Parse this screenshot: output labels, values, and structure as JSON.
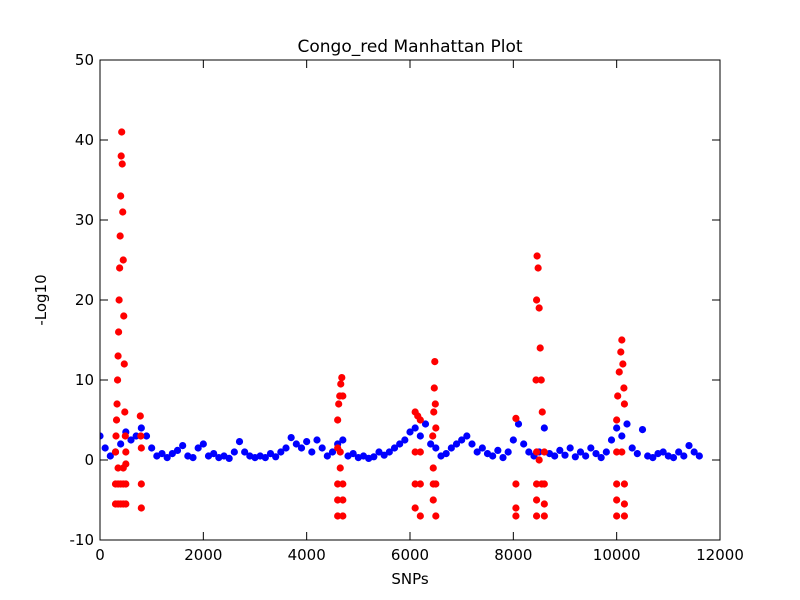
{
  "chart_data": {
    "type": "scatter",
    "title": "Congo_red Manhattan Plot",
    "x_label": "SNPs",
    "y_label": "-Log10",
    "xlim": [
      0,
      12000
    ],
    "ylim": [
      -10,
      50
    ],
    "xticks": [
      0,
      2000,
      4000,
      6000,
      8000,
      10000,
      12000
    ],
    "yticks": [
      -10,
      0,
      10,
      20,
      30,
      40,
      50
    ],
    "grid": false,
    "series": [
      {
        "color": "#0000ff",
        "x": [
          0,
          100,
          200,
          300,
          400,
          500,
          600,
          700,
          800,
          900,
          1000,
          1100,
          1200,
          1300,
          1400,
          1500,
          1600,
          1700,
          1800,
          1900,
          2000,
          2100,
          2200,
          2300,
          2400,
          2500,
          2600,
          2700,
          2800,
          2900,
          3000,
          3100,
          3200,
          3300,
          3400,
          3500,
          3600,
          3700,
          3800,
          3900,
          4000,
          4100,
          4200,
          4300,
          4400,
          4500,
          4600,
          4700,
          4800,
          4900,
          5000,
          5100,
          5200,
          5300,
          5400,
          5500,
          5600,
          5700,
          5800,
          5900,
          6000,
          6100,
          6200,
          6300,
          6400,
          6500,
          6600,
          6700,
          6800,
          6900,
          7000,
          7100,
          7200,
          7300,
          7400,
          7500,
          7600,
          7700,
          7800,
          7900,
          8000,
          8100,
          8200,
          8300,
          8400,
          8500,
          8600,
          8700,
          8800,
          8900,
          9000,
          9100,
          9200,
          9300,
          9400,
          9500,
          9600,
          9700,
          9800,
          9900,
          10000,
          10100,
          10200,
          10300,
          10400,
          10500,
          10600,
          10700,
          10800,
          10900,
          11000,
          11100,
          11200,
          11300,
          11400,
          11500,
          11600
        ],
        "values": [
          3,
          1.5,
          0.5,
          1,
          2,
          3.5,
          2.5,
          3,
          4,
          3,
          1.5,
          0.5,
          0.8,
          0.3,
          0.8,
          1.2,
          1.8,
          0.5,
          0.3,
          1.5,
          2,
          0.5,
          0.8,
          0.3,
          0.5,
          0.2,
          1,
          2.3,
          1,
          0.5,
          0.3,
          0.5,
          0.3,
          0.8,
          0.4,
          1,
          1.5,
          2.8,
          2,
          1.5,
          2.3,
          1,
          2.5,
          1.5,
          0.5,
          1,
          2,
          2.5,
          0.5,
          0.8,
          0.3,
          0.5,
          0.2,
          0.4,
          1,
          0.6,
          1,
          1.5,
          2,
          2.5,
          3.5,
          4,
          3,
          4.5,
          2,
          1.5,
          0.5,
          0.8,
          1.5,
          2,
          2.5,
          3,
          2,
          1,
          1.5,
          0.8,
          0.5,
          1.2,
          0.3,
          1,
          2.5,
          4.5,
          2,
          1,
          0.5,
          1,
          4,
          0.8,
          0.5,
          1.2,
          0.6,
          1.5,
          0.4,
          1,
          0.5,
          1.5,
          0.8,
          0.3,
          1,
          2.5,
          4,
          3,
          4.5,
          1.5,
          0.8,
          3.8,
          0.5,
          0.3,
          0.8,
          1,
          0.5,
          0.3,
          1,
          0.5,
          1.8,
          1,
          0.5
        ]
      },
      {
        "color": "#ff0000",
        "x": [
          300,
          310,
          320,
          330,
          340,
          350,
          360,
          370,
          380,
          390,
          400,
          410,
          420,
          430,
          440,
          450,
          460,
          470,
          480,
          490,
          500,
          300,
          350,
          400,
          450,
          500,
          300,
          350,
          400,
          450,
          500,
          350,
          450,
          500,
          780,
          790,
          800,
          800,
          800,
          4600,
          4620,
          4640,
          4660,
          4680,
          4700,
          4600,
          4650,
          4600,
          4700,
          4600,
          4700,
          4600,
          4700,
          4650,
          6100,
          6150,
          6200,
          6100,
          6200,
          6100,
          6200,
          6100,
          6200,
          6440,
          6460,
          6470,
          6480,
          6490,
          6500,
          6450,
          6450,
          6500,
          6450,
          6500,
          8050,
          8050,
          8050,
          8050,
          8450,
          8460,
          8480,
          8500,
          8520,
          8540,
          8560,
          8440,
          8450,
          8500,
          8600,
          8450,
          8550,
          8600,
          8450,
          8600,
          8450,
          8600,
          10000,
          10020,
          10050,
          10080,
          10100,
          10120,
          10140,
          10150,
          10000,
          10100,
          10000,
          10150,
          10000,
          10150,
          10000,
          10150
        ],
        "values": [
          1,
          3,
          5,
          7,
          10,
          13,
          16,
          20,
          24,
          28,
          33,
          38,
          41,
          37,
          31,
          25,
          18,
          12,
          6,
          3,
          1,
          -3,
          -3,
          -3,
          -3,
          -3,
          -5.5,
          -5.5,
          -5.5,
          -5.5,
          -5.5,
          -1,
          -1,
          -0.5,
          5.5,
          3,
          1.5,
          -3,
          -6,
          5,
          7,
          8,
          9.5,
          10.3,
          8,
          1.5,
          1,
          -3,
          -3,
          -5,
          -5,
          -7,
          -7,
          -1,
          6,
          5.5,
          5,
          1,
          1,
          -3,
          -3,
          -6,
          -7,
          3,
          6,
          9,
          12.3,
          7,
          4,
          -1,
          -3,
          -3,
          -5,
          -7,
          5.2,
          -3,
          -6,
          -7,
          20,
          25.5,
          24,
          19,
          14,
          10,
          6,
          10,
          1,
          0,
          1,
          -3,
          -3,
          -3,
          -5,
          -5.5,
          -7,
          -7,
          5,
          8,
          11,
          13.5,
          15,
          12,
          9,
          7,
          1,
          1,
          -3,
          -3,
          -5,
          -5.5,
          -7,
          -7
        ]
      }
    ]
  }
}
